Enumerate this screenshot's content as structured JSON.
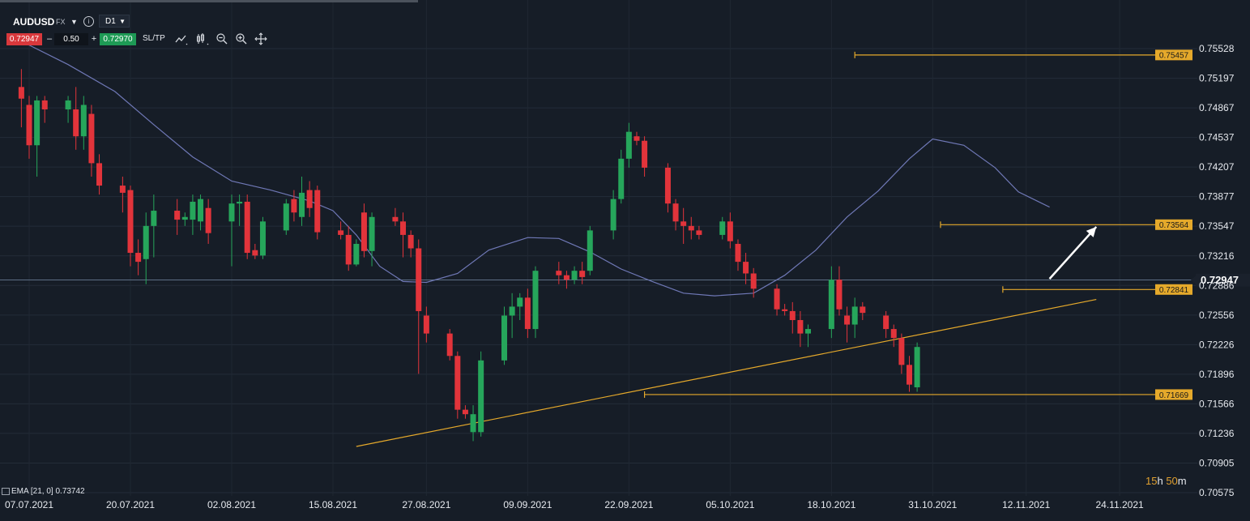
{
  "toolbar": {
    "symbol": "AUDUSD",
    "market": "FX",
    "timeframe": "D1",
    "sell_price": "0.72947",
    "quantity": "0.50",
    "buy_price": "0.72970",
    "sltp_label": "SL/TP",
    "minus_label": "–",
    "plus_label": "+",
    "info_label": "i",
    "icons": [
      "line-chart-icon",
      "candles-icon",
      "zoom-out-icon",
      "zoom-in-icon",
      "crosshair-icon"
    ]
  },
  "indicator_label": "EMA [21, 0] 0.73742",
  "countdown": {
    "hours": "15",
    "h": "h",
    "minutes": "50",
    "m": "m"
  },
  "colors": {
    "background": "#161d27",
    "up": "#26a65b",
    "down": "#e2343b",
    "ema": "#6f78b6",
    "level": "#e5a92b",
    "current_price": "#5c6e86",
    "arrow": "#ffffff"
  },
  "chart_data": {
    "type": "candlestick",
    "title": "",
    "xlabel": "",
    "ylabel": "",
    "ylim": [
      0.70575,
      0.75528
    ],
    "y_ticks": [
      "0.75528",
      "0.75197",
      "0.74867",
      "0.74537",
      "0.74207",
      "0.73877",
      "0.73547",
      "0.73216",
      "0.72886",
      "0.72556",
      "0.72226",
      "0.71896",
      "0.71566",
      "0.71236",
      "0.70905",
      "0.70575"
    ],
    "x_ticks": [
      "07.07.2021",
      "20.07.2021",
      "02.08.2021",
      "15.08.2021",
      "27.08.2021",
      "09.09.2021",
      "22.09.2021",
      "05.10.2021",
      "18.10.2021",
      "31.10.2021",
      "12.11.2021",
      "24.11.2021"
    ],
    "current_price": "0.72947",
    "horizontal_levels": [
      {
        "value": "0.75457",
        "from": "21.10.2021"
      },
      {
        "value": "0.73564",
        "from": "01.11.2021"
      },
      {
        "value": "0.72841",
        "from": "09.11.2021"
      },
      {
        "value": "0.71669",
        "from": "24.09.2021"
      }
    ],
    "trendline": {
      "from": {
        "date": "18.08.2021",
        "price": 0.7109
      },
      "to": {
        "date": "21.11.2021",
        "price": 0.7273
      }
    },
    "arrow": {
      "from": {
        "date": "15.11.2021",
        "price": 0.7296
      },
      "to": {
        "date": "21.11.2021",
        "price": 0.7354
      }
    },
    "ema": {
      "name": "EMA [21, 0]",
      "points": [
        [
          "06.07.2021",
          0.7561
        ],
        [
          "12.07.2021",
          0.7535
        ],
        [
          "18.07.2021",
          0.7505
        ],
        [
          "23.07.2021",
          0.7468
        ],
        [
          "28.07.2021",
          0.7432
        ],
        [
          "02.08.2021",
          0.7405
        ],
        [
          "07.08.2021",
          0.7395
        ],
        [
          "12.08.2021",
          0.7383
        ],
        [
          "15.08.2021",
          0.7372
        ],
        [
          "18.08.2021",
          0.7345
        ],
        [
          "21.08.2021",
          0.731
        ],
        [
          "24.08.2021",
          0.7293
        ],
        [
          "27.08.2021",
          0.7292
        ],
        [
          "31.08.2021",
          0.7302
        ],
        [
          "04.09.2021",
          0.7328
        ],
        [
          "09.09.2021",
          0.7342
        ],
        [
          "13.09.2021",
          0.7341
        ],
        [
          "17.09.2021",
          0.7326
        ],
        [
          "21.09.2021",
          0.7307
        ],
        [
          "25.09.2021",
          0.7293
        ],
        [
          "29.09.2021",
          0.728
        ],
        [
          "03.10.2021",
          0.7277
        ],
        [
          "08.10.2021",
          0.728
        ],
        [
          "12.10.2021",
          0.73
        ],
        [
          "16.10.2021",
          0.7328
        ],
        [
          "20.10.2021",
          0.7365
        ],
        [
          "24.10.2021",
          0.7394
        ],
        [
          "28.10.2021",
          0.743
        ],
        [
          "31.10.2021",
          0.7452
        ],
        [
          "04.11.2021",
          0.7445
        ],
        [
          "08.11.2021",
          0.742
        ],
        [
          "11.11.2021",
          0.7393
        ],
        [
          "15.11.2021",
          0.7376
        ]
      ]
    },
    "candles": [
      {
        "d": "06.07.2021",
        "o": 0.751,
        "h": 0.753,
        "l": 0.7465,
        "c": 0.7497
      },
      {
        "d": "07.07.2021",
        "o": 0.749,
        "h": 0.75,
        "l": 0.743,
        "c": 0.7445
      },
      {
        "d": "08.07.2021",
        "o": 0.7445,
        "h": 0.75,
        "l": 0.741,
        "c": 0.7495
      },
      {
        "d": "09.07.2021",
        "o": 0.7495,
        "h": 0.75,
        "l": 0.747,
        "c": 0.7485
      },
      {
        "d": "12.07.2021",
        "o": 0.7485,
        "h": 0.75,
        "l": 0.747,
        "c": 0.7495
      },
      {
        "d": "13.07.2021",
        "o": 0.7485,
        "h": 0.751,
        "l": 0.744,
        "c": 0.7455
      },
      {
        "d": "14.07.2021",
        "o": 0.7455,
        "h": 0.75,
        "l": 0.744,
        "c": 0.749
      },
      {
        "d": "15.07.2021",
        "o": 0.748,
        "h": 0.749,
        "l": 0.741,
        "c": 0.7425
      },
      {
        "d": "16.07.2021",
        "o": 0.7425,
        "h": 0.7435,
        "l": 0.739,
        "c": 0.74
      },
      {
        "d": "19.07.2021",
        "o": 0.74,
        "h": 0.741,
        "l": 0.737,
        "c": 0.7392
      },
      {
        "d": "20.07.2021",
        "o": 0.7395,
        "h": 0.74,
        "l": 0.731,
        "c": 0.7325
      },
      {
        "d": "21.07.2021",
        "o": 0.7325,
        "h": 0.734,
        "l": 0.73,
        "c": 0.7315
      },
      {
        "d": "22.07.2021",
        "o": 0.7318,
        "h": 0.737,
        "l": 0.729,
        "c": 0.7355
      },
      {
        "d": "23.07.2021",
        "o": 0.7355,
        "h": 0.739,
        "l": 0.732,
        "c": 0.7372
      },
      {
        "d": "26.07.2021",
        "o": 0.7372,
        "h": 0.7385,
        "l": 0.7345,
        "c": 0.7362
      },
      {
        "d": "27.07.2021",
        "o": 0.7362,
        "h": 0.737,
        "l": 0.7355,
        "c": 0.7365
      },
      {
        "d": "28.07.2021",
        "o": 0.7362,
        "h": 0.739,
        "l": 0.7345,
        "c": 0.7382
      },
      {
        "d": "29.07.2021",
        "o": 0.736,
        "h": 0.739,
        "l": 0.735,
        "c": 0.7385
      },
      {
        "d": "30.07.2021",
        "o": 0.7375,
        "h": 0.7385,
        "l": 0.7335,
        "c": 0.7347
      },
      {
        "d": "02.08.2021",
        "o": 0.736,
        "h": 0.739,
        "l": 0.731,
        "c": 0.738
      },
      {
        "d": "03.08.2021",
        "o": 0.738,
        "h": 0.739,
        "l": 0.7355,
        "c": 0.7382
      },
      {
        "d": "04.08.2021",
        "o": 0.7382,
        "h": 0.739,
        "l": 0.7318,
        "c": 0.7325
      },
      {
        "d": "05.08.2021",
        "o": 0.7328,
        "h": 0.7335,
        "l": 0.7318,
        "c": 0.7322
      },
      {
        "d": "06.08.2021",
        "o": 0.7322,
        "h": 0.7365,
        "l": 0.7318,
        "c": 0.736
      },
      {
        "d": "09.08.2021",
        "o": 0.735,
        "h": 0.7385,
        "l": 0.7345,
        "c": 0.738
      },
      {
        "d": "10.08.2021",
        "o": 0.7385,
        "h": 0.7395,
        "l": 0.736,
        "c": 0.737
      },
      {
        "d": "11.08.2021",
        "o": 0.7365,
        "h": 0.741,
        "l": 0.7355,
        "c": 0.7392
      },
      {
        "d": "12.08.2021",
        "o": 0.7395,
        "h": 0.7405,
        "l": 0.7365,
        "c": 0.7375
      },
      {
        "d": "13.08.2021",
        "o": 0.7395,
        "h": 0.74,
        "l": 0.734,
        "c": 0.7348
      },
      {
        "d": "16.08.2021",
        "o": 0.735,
        "h": 0.736,
        "l": 0.734,
        "c": 0.7345
      },
      {
        "d": "17.08.2021",
        "o": 0.7345,
        "h": 0.7355,
        "l": 0.7305,
        "c": 0.7312
      },
      {
        "d": "18.08.2021",
        "o": 0.7312,
        "h": 0.734,
        "l": 0.731,
        "c": 0.7335
      },
      {
        "d": "19.08.2021",
        "o": 0.737,
        "h": 0.738,
        "l": 0.732,
        "c": 0.7327
      },
      {
        "d": "20.08.2021",
        "o": 0.7327,
        "h": 0.737,
        "l": 0.731,
        "c": 0.7365
      },
      {
        "d": "23.08.2021",
        "o": 0.7365,
        "h": 0.7375,
        "l": 0.7355,
        "c": 0.736
      },
      {
        "d": "24.08.2021",
        "o": 0.736,
        "h": 0.737,
        "l": 0.732,
        "c": 0.7345
      },
      {
        "d": "25.08.2021",
        "o": 0.7345,
        "h": 0.735,
        "l": 0.732,
        "c": 0.733
      },
      {
        "d": "26.08.2021",
        "o": 0.733,
        "h": 0.734,
        "l": 0.719,
        "c": 0.726
      },
      {
        "d": "27.08.2021",
        "o": 0.7255,
        "h": 0.7265,
        "l": 0.7225,
        "c": 0.7235
      },
      {
        "d": "30.08.2021",
        "o": 0.7235,
        "h": 0.724,
        "l": 0.7205,
        "c": 0.721
      },
      {
        "d": "31.08.2021",
        "o": 0.721,
        "h": 0.7215,
        "l": 0.714,
        "c": 0.715
      },
      {
        "d": "01.09.2021",
        "o": 0.715,
        "h": 0.7155,
        "l": 0.714,
        "c": 0.7145
      },
      {
        "d": "02.09.2021",
        "o": 0.7125,
        "h": 0.7155,
        "l": 0.7115,
        "c": 0.7145
      },
      {
        "d": "03.09.2021",
        "o": 0.7125,
        "h": 0.7215,
        "l": 0.712,
        "c": 0.7205
      },
      {
        "d": "06.09.2021",
        "o": 0.7205,
        "h": 0.7265,
        "l": 0.72,
        "c": 0.7255
      },
      {
        "d": "07.09.2021",
        "o": 0.7255,
        "h": 0.728,
        "l": 0.723,
        "c": 0.7265
      },
      {
        "d": "08.09.2021",
        "o": 0.7265,
        "h": 0.728,
        "l": 0.725,
        "c": 0.7275
      },
      {
        "d": "09.09.2021",
        "o": 0.7275,
        "h": 0.7285,
        "l": 0.723,
        "c": 0.724
      },
      {
        "d": "10.09.2021",
        "o": 0.724,
        "h": 0.731,
        "l": 0.723,
        "c": 0.7305
      },
      {
        "d": "13.09.2021",
        "o": 0.7305,
        "h": 0.7315,
        "l": 0.729,
        "c": 0.73
      },
      {
        "d": "14.09.2021",
        "o": 0.73,
        "h": 0.7305,
        "l": 0.7285,
        "c": 0.7295
      },
      {
        "d": "15.09.2021",
        "o": 0.7295,
        "h": 0.731,
        "l": 0.729,
        "c": 0.7305
      },
      {
        "d": "16.09.2021",
        "o": 0.7305,
        "h": 0.7315,
        "l": 0.729,
        "c": 0.7298
      },
      {
        "d": "17.09.2021",
        "o": 0.7305,
        "h": 0.7355,
        "l": 0.73,
        "c": 0.735
      },
      {
        "d": "20.09.2021",
        "o": 0.735,
        "h": 0.7395,
        "l": 0.734,
        "c": 0.7385
      },
      {
        "d": "21.09.2021",
        "o": 0.7385,
        "h": 0.744,
        "l": 0.738,
        "c": 0.743
      },
      {
        "d": "22.09.2021",
        "o": 0.743,
        "h": 0.747,
        "l": 0.742,
        "c": 0.746
      },
      {
        "d": "23.09.2021",
        "o": 0.7455,
        "h": 0.746,
        "l": 0.7445,
        "c": 0.745
      },
      {
        "d": "24.09.2021",
        "o": 0.745,
        "h": 0.7455,
        "l": 0.741,
        "c": 0.742
      },
      {
        "d": "27.09.2021",
        "o": 0.742,
        "h": 0.7425,
        "l": 0.737,
        "c": 0.738
      },
      {
        "d": "28.09.2021",
        "o": 0.738,
        "h": 0.7385,
        "l": 0.735,
        "c": 0.736
      },
      {
        "d": "29.09.2021",
        "o": 0.736,
        "h": 0.7375,
        "l": 0.7335,
        "c": 0.7355
      },
      {
        "d": "30.09.2021",
        "o": 0.7355,
        "h": 0.7365,
        "l": 0.734,
        "c": 0.735
      },
      {
        "d": "01.10.2021",
        "o": 0.735,
        "h": 0.7355,
        "l": 0.734,
        "c": 0.7345
      },
      {
        "d": "04.10.2021",
        "o": 0.7345,
        "h": 0.7365,
        "l": 0.734,
        "c": 0.736
      },
      {
        "d": "05.10.2021",
        "o": 0.736,
        "h": 0.737,
        "l": 0.733,
        "c": 0.7338
      },
      {
        "d": "06.10.2021",
        "o": 0.7335,
        "h": 0.734,
        "l": 0.7305,
        "c": 0.7315
      },
      {
        "d": "07.10.2021",
        "o": 0.7315,
        "h": 0.7325,
        "l": 0.729,
        "c": 0.7302
      },
      {
        "d": "08.10.2021",
        "o": 0.7302,
        "h": 0.7308,
        "l": 0.7275,
        "c": 0.7285
      },
      {
        "d": "11.10.2021",
        "o": 0.7285,
        "h": 0.729,
        "l": 0.7255,
        "c": 0.7262
      },
      {
        "d": "12.10.2021",
        "o": 0.7262,
        "h": 0.7268,
        "l": 0.7255,
        "c": 0.726
      },
      {
        "d": "13.10.2021",
        "o": 0.726,
        "h": 0.727,
        "l": 0.7235,
        "c": 0.725
      },
      {
        "d": "14.10.2021",
        "o": 0.725,
        "h": 0.726,
        "l": 0.722,
        "c": 0.7235
      },
      {
        "d": "15.10.2021",
        "o": 0.7235,
        "h": 0.7245,
        "l": 0.722,
        "c": 0.724
      },
      {
        "d": "18.10.2021",
        "o": 0.724,
        "h": 0.731,
        "l": 0.723,
        "c": 0.7295
      },
      {
        "d": "19.10.2021",
        "o": 0.7295,
        "h": 0.731,
        "l": 0.7255,
        "c": 0.7262
      },
      {
        "d": "20.10.2021",
        "o": 0.7255,
        "h": 0.7265,
        "l": 0.7225,
        "c": 0.7245
      },
      {
        "d": "21.10.2021",
        "o": 0.7245,
        "h": 0.7275,
        "l": 0.723,
        "c": 0.7265
      },
      {
        "d": "22.10.2021",
        "o": 0.7265,
        "h": 0.727,
        "l": 0.725,
        "c": 0.7258
      },
      {
        "d": "25.10.2021",
        "o": 0.7255,
        "h": 0.726,
        "l": 0.723,
        "c": 0.724
      },
      {
        "d": "26.10.2021",
        "o": 0.724,
        "h": 0.7245,
        "l": 0.722,
        "c": 0.723
      },
      {
        "d": "27.10.2021",
        "o": 0.723,
        "h": 0.7235,
        "l": 0.719,
        "c": 0.72
      },
      {
        "d": "28.10.2021",
        "o": 0.72,
        "h": 0.721,
        "l": 0.717,
        "c": 0.7178
      },
      {
        "d": "29.10.2021",
        "o": 0.7175,
        "h": 0.7225,
        "l": 0.717,
        "c": 0.722
      }
    ]
  }
}
